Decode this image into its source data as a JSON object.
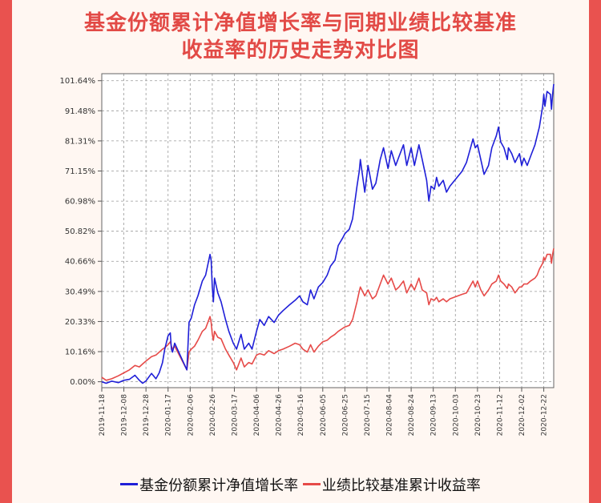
{
  "title_lines": [
    "基金份额累计净值增长率与同期业绩比较基准",
    "收益率的历史走势对比图"
  ],
  "chart_data": {
    "type": "line",
    "title": "基金份额累计净值增长率与同期业绩比较基准收益率的历史走势对比图",
    "ylim": [
      -2,
      104
    ],
    "yticks": [
      0.0,
      10.16,
      20.33,
      30.49,
      40.66,
      50.82,
      60.98,
      71.15,
      81.31,
      91.48,
      101.64
    ],
    "ytick_labels": [
      "0.00%",
      "10.16%",
      "20.33%",
      "30.49%",
      "40.66%",
      "50.82%",
      "60.98%",
      "71.15%",
      "81.31%",
      "91.48%",
      "101.64%"
    ],
    "x_start": "2019-11-18",
    "x_end": "2020-12-31",
    "xtick_labels": [
      "2019-11-18",
      "2019-12-08",
      "2019-12-28",
      "2020-01-17",
      "2020-02-06",
      "2020-02-26",
      "2020-03-17",
      "2020-04-06",
      "2020-04-26",
      "2020-05-16",
      "2020-06-05",
      "2020-06-25",
      "2020-07-15",
      "2020-08-04",
      "2020-08-24",
      "2020-09-13",
      "2020-10-03",
      "2020-10-23",
      "2020-11-12",
      "2020-12-02",
      "2020-12-22"
    ],
    "grid": true,
    "legend_position": "bottom",
    "series": [
      {
        "name": "基金份额累计净值增长率",
        "color": "#1f1fd8",
        "points": [
          [
            "2019-11-18",
            0.0
          ],
          [
            "2019-11-22",
            -0.5
          ],
          [
            "2019-11-27",
            0.2
          ],
          [
            "2019-12-03",
            -0.3
          ],
          [
            "2019-12-08",
            0.5
          ],
          [
            "2019-12-13",
            0.8
          ],
          [
            "2019-12-18",
            2.2
          ],
          [
            "2019-12-22",
            0.5
          ],
          [
            "2019-12-25",
            -0.5
          ],
          [
            "2019-12-28",
            0.3
          ],
          [
            "2020-01-02",
            2.8
          ],
          [
            "2020-01-06",
            1.0
          ],
          [
            "2020-01-09",
            3.0
          ],
          [
            "2020-01-12",
            6.5
          ],
          [
            "2020-01-14",
            11.0
          ],
          [
            "2020-01-17",
            15.5
          ],
          [
            "2020-01-19",
            16.5
          ],
          [
            "2020-01-20",
            11.0
          ],
          [
            "2020-01-21",
            10.0
          ],
          [
            "2020-01-23",
            13.0
          ],
          [
            "2020-02-03",
            4.0
          ],
          [
            "2020-02-05",
            20.0
          ],
          [
            "2020-02-07",
            21.5
          ],
          [
            "2020-02-10",
            26.0
          ],
          [
            "2020-02-13",
            29.0
          ],
          [
            "2020-02-17",
            34.0
          ],
          [
            "2020-02-20",
            36.0
          ],
          [
            "2020-02-24",
            43.0
          ],
          [
            "2020-02-25",
            41.0
          ],
          [
            "2020-02-26",
            32.0
          ],
          [
            "2020-02-27",
            27.0
          ],
          [
            "2020-02-28",
            35.0
          ],
          [
            "2020-03-02",
            30.0
          ],
          [
            "2020-03-05",
            27.0
          ],
          [
            "2020-03-09",
            21.0
          ],
          [
            "2020-03-12",
            17.0
          ],
          [
            "2020-03-16",
            13.0
          ],
          [
            "2020-03-19",
            11.0
          ],
          [
            "2020-03-23",
            16.0
          ],
          [
            "2020-03-26",
            11.0
          ],
          [
            "2020-03-30",
            13.0
          ],
          [
            "2020-04-02",
            11.0
          ],
          [
            "2020-04-06",
            17.0
          ],
          [
            "2020-04-09",
            21.0
          ],
          [
            "2020-04-13",
            19.0
          ],
          [
            "2020-04-17",
            22.0
          ],
          [
            "2020-04-22",
            20.0
          ],
          [
            "2020-04-26",
            22.5
          ],
          [
            "2020-04-30",
            24.0
          ],
          [
            "2020-05-06",
            26.0
          ],
          [
            "2020-05-11",
            27.5
          ],
          [
            "2020-05-15",
            29.0
          ],
          [
            "2020-05-18",
            27.0
          ],
          [
            "2020-05-22",
            26.0
          ],
          [
            "2020-05-25",
            31.0
          ],
          [
            "2020-05-28",
            28.0
          ],
          [
            "2020-06-01",
            32.0
          ],
          [
            "2020-06-05",
            33.5
          ],
          [
            "2020-06-09",
            36.0
          ],
          [
            "2020-06-12",
            39.0
          ],
          [
            "2020-06-16",
            41.0
          ],
          [
            "2020-06-19",
            46.0
          ],
          [
            "2020-06-23",
            48.5
          ],
          [
            "2020-06-25",
            50.0
          ],
          [
            "2020-06-29",
            51.5
          ],
          [
            "2020-07-02",
            55.0
          ],
          [
            "2020-07-06",
            66.0
          ],
          [
            "2020-07-08",
            71.0
          ],
          [
            "2020-07-09",
            75.0
          ],
          [
            "2020-07-13",
            64.0
          ],
          [
            "2020-07-16",
            73.0
          ],
          [
            "2020-07-20",
            65.0
          ],
          [
            "2020-07-23",
            67.0
          ],
          [
            "2020-07-27",
            75.0
          ],
          [
            "2020-07-30",
            79.0
          ],
          [
            "2020-08-03",
            72.0
          ],
          [
            "2020-08-06",
            78.0
          ],
          [
            "2020-08-10",
            73.0
          ],
          [
            "2020-08-13",
            76.0
          ],
          [
            "2020-08-17",
            80.0
          ],
          [
            "2020-08-20",
            73.0
          ],
          [
            "2020-08-24",
            79.0
          ],
          [
            "2020-08-27",
            73.0
          ],
          [
            "2020-08-31",
            80.0
          ],
          [
            "2020-09-03",
            75.0
          ],
          [
            "2020-09-07",
            68.0
          ],
          [
            "2020-09-09",
            61.0
          ],
          [
            "2020-09-11",
            66.0
          ],
          [
            "2020-09-14",
            65.0
          ],
          [
            "2020-09-16",
            69.0
          ],
          [
            "2020-09-18",
            66.0
          ],
          [
            "2020-09-22",
            68.0
          ],
          [
            "2020-09-25",
            64.0
          ],
          [
            "2020-09-28",
            66.0
          ],
          [
            "2020-10-09",
            71.0
          ],
          [
            "2020-10-13",
            74.0
          ],
          [
            "2020-10-16",
            78.0
          ],
          [
            "2020-10-19",
            82.0
          ],
          [
            "2020-10-21",
            79.0
          ],
          [
            "2020-10-23",
            80.0
          ],
          [
            "2020-10-26",
            75.0
          ],
          [
            "2020-10-29",
            70.0
          ],
          [
            "2020-11-02",
            73.0
          ],
          [
            "2020-11-05",
            79.0
          ],
          [
            "2020-11-09",
            83.0
          ],
          [
            "2020-11-11",
            86.0
          ],
          [
            "2020-11-13",
            81.0
          ],
          [
            "2020-11-16",
            79.0
          ],
          [
            "2020-11-19",
            75.0
          ],
          [
            "2020-11-20",
            79.0
          ],
          [
            "2020-11-23",
            77.0
          ],
          [
            "2020-11-26",
            74.0
          ],
          [
            "2020-11-30",
            77.0
          ],
          [
            "2020-12-02",
            73.0
          ],
          [
            "2020-12-04",
            75.5
          ],
          [
            "2020-12-07",
            73.0
          ],
          [
            "2020-12-10",
            76.0
          ],
          [
            "2020-12-14",
            80.0
          ],
          [
            "2020-12-16",
            83.0
          ],
          [
            "2020-12-18",
            86.0
          ],
          [
            "2020-12-21",
            93.0
          ],
          [
            "2020-12-22",
            97.0
          ],
          [
            "2020-12-23",
            93.0
          ],
          [
            "2020-12-25",
            98.0
          ],
          [
            "2020-12-28",
            97.0
          ],
          [
            "2020-12-29",
            92.0
          ],
          [
            "2020-12-30",
            97.0
          ],
          [
            "2020-12-31",
            100.5
          ]
        ]
      },
      {
        "name": "业绩比较基准累计收益率",
        "color": "#e64a48",
        "points": [
          [
            "2019-11-18",
            1.5
          ],
          [
            "2019-11-22",
            0.5
          ],
          [
            "2019-11-27",
            1.0
          ],
          [
            "2019-12-03",
            2.0
          ],
          [
            "2019-12-08",
            3.0
          ],
          [
            "2019-12-13",
            4.0
          ],
          [
            "2019-12-18",
            5.5
          ],
          [
            "2019-12-22",
            5.0
          ],
          [
            "2019-12-25",
            6.0
          ],
          [
            "2019-12-28",
            7.0
          ],
          [
            "2020-01-02",
            8.5
          ],
          [
            "2020-01-06",
            9.0
          ],
          [
            "2020-01-09",
            10.0
          ],
          [
            "2020-01-12",
            11.0
          ],
          [
            "2020-01-14",
            11.5
          ],
          [
            "2020-01-17",
            12.5
          ],
          [
            "2020-01-19",
            13.5
          ],
          [
            "2020-01-20",
            12.0
          ],
          [
            "2020-01-21",
            11.0
          ],
          [
            "2020-01-23",
            12.0
          ],
          [
            "2020-02-03",
            4.0
          ],
          [
            "2020-02-05",
            10.0
          ],
          [
            "2020-02-07",
            11.0
          ],
          [
            "2020-02-10",
            12.0
          ],
          [
            "2020-02-13",
            14.0
          ],
          [
            "2020-02-17",
            17.0
          ],
          [
            "2020-02-20",
            18.0
          ],
          [
            "2020-02-24",
            22.0
          ],
          [
            "2020-02-25",
            20.0
          ],
          [
            "2020-02-26",
            16.0
          ],
          [
            "2020-02-27",
            14.0
          ],
          [
            "2020-02-28",
            17.0
          ],
          [
            "2020-03-02",
            15.0
          ],
          [
            "2020-03-05",
            14.5
          ],
          [
            "2020-03-09",
            11.0
          ],
          [
            "2020-03-12",
            9.0
          ],
          [
            "2020-03-16",
            6.5
          ],
          [
            "2020-03-19",
            4.0
          ],
          [
            "2020-03-23",
            8.0
          ],
          [
            "2020-03-26",
            5.0
          ],
          [
            "2020-03-30",
            6.5
          ],
          [
            "2020-04-02",
            6.0
          ],
          [
            "2020-04-06",
            9.0
          ],
          [
            "2020-04-09",
            9.5
          ],
          [
            "2020-04-13",
            9.0
          ],
          [
            "2020-04-17",
            10.5
          ],
          [
            "2020-04-22",
            9.5
          ],
          [
            "2020-04-26",
            10.5
          ],
          [
            "2020-04-30",
            11.0
          ],
          [
            "2020-05-06",
            12.0
          ],
          [
            "2020-05-11",
            13.0
          ],
          [
            "2020-05-15",
            12.5
          ],
          [
            "2020-05-18",
            11.0
          ],
          [
            "2020-05-22",
            10.0
          ],
          [
            "2020-05-25",
            12.5
          ],
          [
            "2020-05-28",
            10.0
          ],
          [
            "2020-06-01",
            12.0
          ],
          [
            "2020-06-05",
            13.5
          ],
          [
            "2020-06-09",
            14.0
          ],
          [
            "2020-06-12",
            15.0
          ],
          [
            "2020-06-16",
            16.0
          ],
          [
            "2020-06-19",
            17.0
          ],
          [
            "2020-06-23",
            18.0
          ],
          [
            "2020-06-25",
            18.5
          ],
          [
            "2020-06-29",
            19.0
          ],
          [
            "2020-07-02",
            21.0
          ],
          [
            "2020-07-06",
            27.0
          ],
          [
            "2020-07-08",
            30.5
          ],
          [
            "2020-07-09",
            32.0
          ],
          [
            "2020-07-13",
            29.0
          ],
          [
            "2020-07-16",
            31.0
          ],
          [
            "2020-07-20",
            28.0
          ],
          [
            "2020-07-23",
            29.0
          ],
          [
            "2020-07-27",
            33.0
          ],
          [
            "2020-07-30",
            36.0
          ],
          [
            "2020-08-03",
            33.0
          ],
          [
            "2020-08-06",
            35.0
          ],
          [
            "2020-08-10",
            31.0
          ],
          [
            "2020-08-13",
            32.0
          ],
          [
            "2020-08-17",
            34.0
          ],
          [
            "2020-08-20",
            30.0
          ],
          [
            "2020-08-24",
            33.0
          ],
          [
            "2020-08-27",
            31.0
          ],
          [
            "2020-08-31",
            35.0
          ],
          [
            "2020-09-03",
            31.0
          ],
          [
            "2020-09-07",
            30.0
          ],
          [
            "2020-09-09",
            26.0
          ],
          [
            "2020-09-11",
            28.0
          ],
          [
            "2020-09-14",
            27.5
          ],
          [
            "2020-09-16",
            28.5
          ],
          [
            "2020-09-18",
            27.0
          ],
          [
            "2020-09-22",
            28.0
          ],
          [
            "2020-09-25",
            27.0
          ],
          [
            "2020-09-28",
            28.0
          ],
          [
            "2020-10-09",
            29.5
          ],
          [
            "2020-10-13",
            30.0
          ],
          [
            "2020-10-16",
            32.0
          ],
          [
            "2020-10-19",
            34.0
          ],
          [
            "2020-10-21",
            32.0
          ],
          [
            "2020-10-23",
            34.0
          ],
          [
            "2020-10-26",
            31.0
          ],
          [
            "2020-10-29",
            29.0
          ],
          [
            "2020-11-02",
            31.0
          ],
          [
            "2020-11-05",
            33.0
          ],
          [
            "2020-11-09",
            34.0
          ],
          [
            "2020-11-11",
            36.0
          ],
          [
            "2020-11-13",
            34.0
          ],
          [
            "2020-11-16",
            33.0
          ],
          [
            "2020-11-19",
            31.5
          ],
          [
            "2020-11-20",
            33.0
          ],
          [
            "2020-11-23",
            32.0
          ],
          [
            "2020-11-26",
            30.0
          ],
          [
            "2020-11-30",
            32.0
          ],
          [
            "2020-12-02",
            32.0
          ],
          [
            "2020-12-04",
            33.0
          ],
          [
            "2020-12-07",
            33.0
          ],
          [
            "2020-12-10",
            34.0
          ],
          [
            "2020-12-14",
            35.0
          ],
          [
            "2020-12-16",
            36.0
          ],
          [
            "2020-12-18",
            38.0
          ],
          [
            "2020-12-21",
            40.0
          ],
          [
            "2020-12-22",
            42.0
          ],
          [
            "2020-12-23",
            41.0
          ],
          [
            "2020-12-25",
            43.0
          ],
          [
            "2020-12-28",
            43.0
          ],
          [
            "2020-12-29",
            40.0
          ],
          [
            "2020-12-30",
            43.0
          ],
          [
            "2020-12-31",
            45.0
          ]
        ]
      }
    ]
  }
}
